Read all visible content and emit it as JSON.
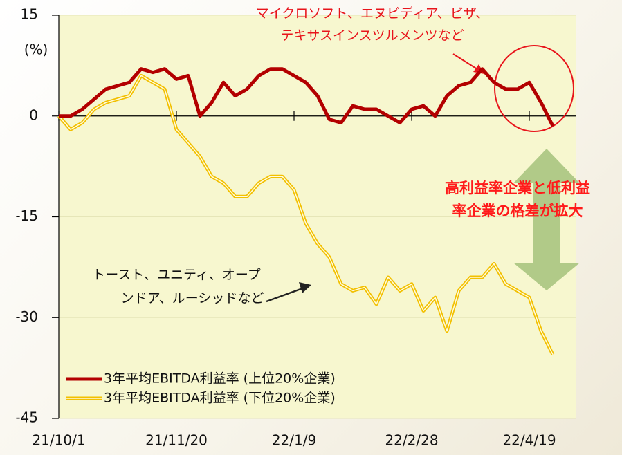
{
  "chart_data": {
    "type": "line",
    "y_label": "(%)",
    "x": [
      "21/10/1",
      "21/10/6",
      "21/10/11",
      "21/10/16",
      "21/10/21",
      "21/10/26",
      "21/10/31",
      "21/11/5",
      "21/11/10",
      "21/11/15",
      "21/11/20",
      "21/11/25",
      "21/11/30",
      "21/12/5",
      "21/12/10",
      "21/12/15",
      "21/12/20",
      "21/12/25",
      "21/12/30",
      "22/1/4",
      "22/1/9",
      "22/1/14",
      "22/1/19",
      "22/1/24",
      "22/1/29",
      "22/2/3",
      "22/2/8",
      "22/2/13",
      "22/2/18",
      "22/2/23",
      "22/2/28",
      "22/3/5",
      "22/3/10",
      "22/3/15",
      "22/3/20",
      "22/3/25",
      "22/3/30",
      "22/4/4",
      "22/4/9",
      "22/4/14",
      "22/4/19",
      "22/4/24",
      "22/4/29"
    ],
    "series": [
      {
        "name": "3年平均EBITDA利益率 (上位20%企業)",
        "color": "#b30000",
        "values": [
          0,
          0,
          1,
          2.5,
          4,
          4.5,
          5,
          7,
          6.5,
          7,
          5.5,
          6,
          0,
          2,
          5,
          3,
          4,
          6,
          7,
          7,
          6,
          5,
          3,
          -0.5,
          -1,
          1.5,
          1,
          1,
          0,
          -1,
          1,
          1.5,
          0,
          3,
          4.5,
          5,
          7,
          5,
          4,
          4,
          5,
          2,
          -1.5
        ]
      },
      {
        "name": "3年平均EBITDA利益率 (下位20%企業)",
        "color": "#f2c000",
        "values": [
          0,
          -2,
          -1,
          1,
          2,
          2.5,
          3,
          6,
          5,
          4,
          -2,
          -4,
          -6,
          -9,
          -10,
          -12,
          -12,
          -10,
          -9,
          -9,
          -11,
          -16,
          -19,
          -21,
          -25,
          -26,
          -25.5,
          -28,
          -24,
          -26,
          -25,
          -29,
          -27,
          -32,
          -26,
          -24,
          -24,
          -22,
          -25,
          -26,
          -27,
          -32,
          -35.5
        ]
      }
    ],
    "xlim": [
      "21/10/1",
      "22/5/9"
    ],
    "xticks": [
      "21/10/1",
      "21/11/20",
      "22/1/9",
      "22/2/28",
      "22/4/19"
    ],
    "ylim": [
      -45,
      15
    ],
    "yticks": [
      -45,
      -30,
      -15,
      0,
      15
    ],
    "grid": true,
    "legend": "lower left",
    "annotations": [
      [
        "マイクロソフト、エヌビディア、ビザ、",
        "テキサスインスツルメンツなど"
      ],
      [
        "トースト、ユニティ、オープ",
        "ンドア、ルーシッドなど"
      ],
      [
        "高利益率企業と低利益",
        "率企業の格差が拡大"
      ]
    ]
  }
}
